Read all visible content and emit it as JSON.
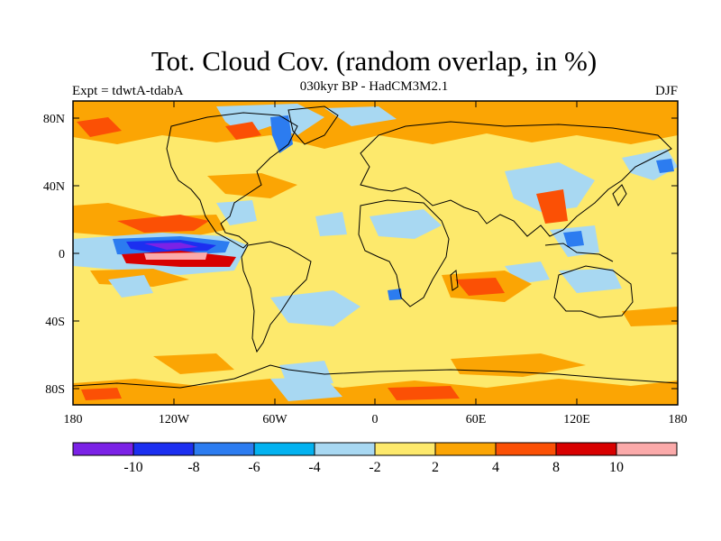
{
  "title": "Tot. Cloud Cov. (random overlap, in %)",
  "subtitle": "030kyr BP - HadCM3M2.1",
  "experiment": "Expt = tdwtA-tdabA",
  "season": "DJF",
  "lat_labels": [
    "80N",
    "40N",
    "0",
    "40S",
    "80S"
  ],
  "lon_labels": [
    "180",
    "120W",
    "60W",
    "0",
    "60E",
    "120E",
    "180"
  ],
  "colorbar": {
    "colors": [
      "#7b22e6",
      "#1c2ff0",
      "#2c7cf0",
      "#03b2f0",
      "#a8d8f2",
      "#fde96c",
      "#fba504",
      "#fb5005",
      "#d80000",
      "#fbaaaa"
    ],
    "labels": [
      "-10",
      "-8",
      "-6",
      "-4",
      "-2",
      "2",
      "4",
      "8",
      "10"
    ]
  },
  "colors": {
    "background_field": "#fde96c",
    "coast": "#000000"
  }
}
